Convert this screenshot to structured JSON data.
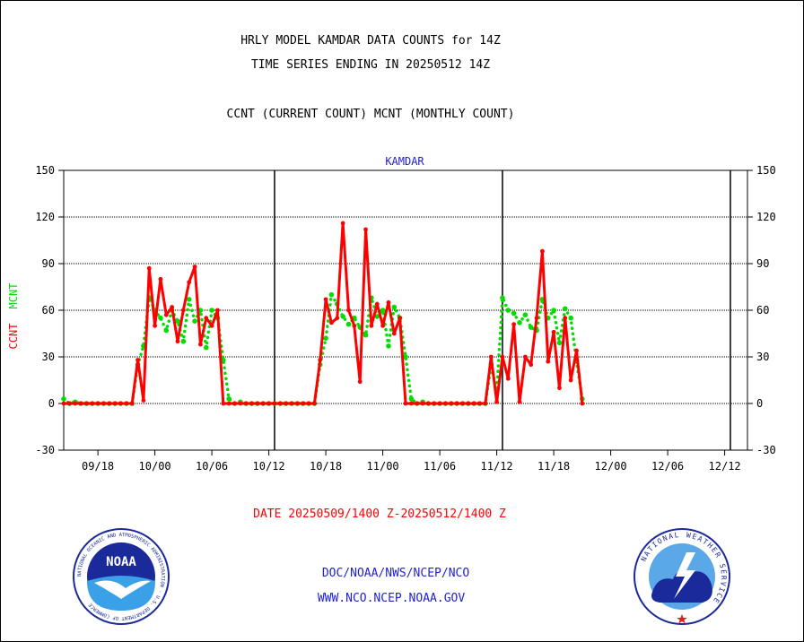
{
  "title_line1": "HRLY MODEL KAMDAR DATA COUNTS for 14Z",
  "title_line2": "TIME SERIES ENDING IN 20250512 14Z",
  "subtitle": "CCNT (CURRENT COUNT) MCNT (MONTHLY COUNT)",
  "panel_label": "KAMDAR",
  "date_range": "DATE 20250509/1400 Z-20250512/1400 Z",
  "footer_org": "DOC/NOAA/NWS/NCEP/NCO",
  "footer_url": "WWW.NCO.NCEP.NOAA.GOV",
  "logo_left_text": "NOAA",
  "logo_left_ring": "NATIONAL OCEANIC AND ATMOSPHERIC ADMINISTRATION · U.S. DEPARTMENT OF COMMERCE",
  "logo_right_ring": "NATIONAL WEATHER SERVICE",
  "colors": {
    "ccnt": "#ff0000",
    "mcnt": "#00dd00",
    "text_blue": "#2222cc",
    "text_red": "#ff0000"
  },
  "chart_data": {
    "type": "line",
    "ylabel_left": "CCNT",
    "ylabel_right": "MCNT",
    "ylim": [
      -30,
      150
    ],
    "yticks": [
      -30,
      0,
      30,
      60,
      90,
      120,
      150
    ],
    "x_ticks": [
      {
        "i": 6,
        "label": "09/18"
      },
      {
        "i": 16,
        "label": "10/00"
      },
      {
        "i": 26,
        "label": "10/06"
      },
      {
        "i": 36,
        "label": "10/12"
      },
      {
        "i": 46,
        "label": "10/18"
      },
      {
        "i": 56,
        "label": "11/00"
      },
      {
        "i": 66,
        "label": "11/06"
      },
      {
        "i": 76,
        "label": "11/12"
      },
      {
        "i": 86,
        "label": "11/18"
      },
      {
        "i": 96,
        "label": "12/00"
      },
      {
        "i": 106,
        "label": "12/06"
      },
      {
        "i": 116,
        "label": "12/12"
      }
    ],
    "x_range": [
      0,
      120
    ],
    "day_boundaries": [
      37,
      77,
      117
    ],
    "grid": true,
    "series": [
      {
        "name": "CCNT",
        "color": "#ff0000",
        "style": "solid",
        "values": [
          0,
          0,
          0,
          0,
          0,
          0,
          0,
          0,
          0,
          0,
          0,
          0,
          0,
          28,
          2,
          87,
          50,
          80,
          57,
          62,
          40,
          60,
          78,
          88,
          38,
          55,
          50,
          60,
          0,
          0,
          0,
          0,
          0,
          0,
          0,
          0,
          0,
          0,
          0,
          0,
          0,
          0,
          0,
          0,
          0,
          28,
          67,
          52,
          55,
          116,
          60,
          50,
          14,
          112,
          50,
          64,
          50,
          65,
          45,
          55,
          0,
          0,
          0,
          0,
          0,
          0,
          0,
          0,
          0,
          0,
          0,
          0,
          0,
          0,
          0,
          30,
          1,
          30,
          16,
          51,
          1,
          30,
          25,
          55,
          98,
          27,
          46,
          10,
          55,
          15,
          34,
          0
        ]
      },
      {
        "name": "MCNT",
        "color": "#00dd00",
        "style": "dotted",
        "values": [
          3,
          0,
          1,
          0,
          0,
          0,
          0,
          0,
          0,
          0,
          0,
          0,
          0,
          25,
          37,
          68,
          60,
          55,
          47,
          60,
          53,
          40,
          67,
          53,
          60,
          36,
          60,
          55,
          28,
          3,
          0,
          1,
          0,
          0,
          0,
          0,
          0,
          0,
          0,
          0,
          0,
          0,
          0,
          0,
          0,
          25,
          42,
          70,
          64,
          56,
          51,
          55,
          49,
          44,
          68,
          56,
          60,
          37,
          62,
          55,
          30,
          3,
          0,
          1,
          0,
          0,
          0,
          0,
          0,
          0,
          0,
          0,
          0,
          0,
          0,
          25,
          8,
          68,
          60,
          58,
          52,
          57,
          49,
          47,
          67,
          55,
          60,
          39,
          61,
          55,
          27,
          3
        ]
      }
    ]
  }
}
